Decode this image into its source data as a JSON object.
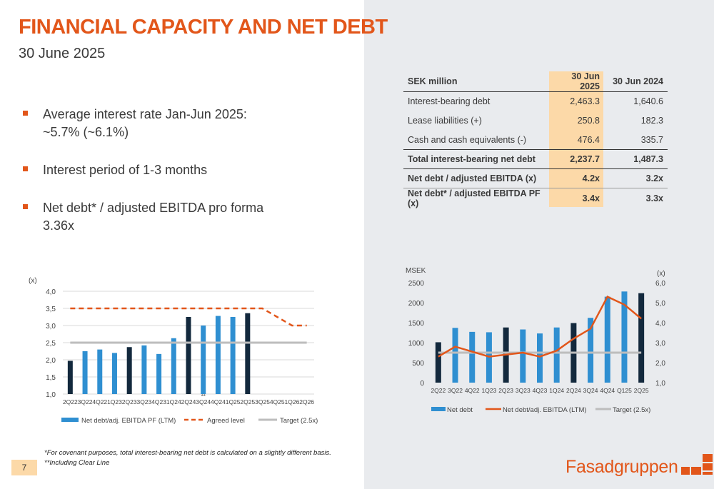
{
  "title": "FINANCIAL CAPACITY AND NET DEBT",
  "subtitle": "30 June 2025",
  "bullets": [
    {
      "line1": "Average interest rate Jan-Jun 2025:",
      "line2": "~5.7% (~6.1%)"
    },
    {
      "line1": "Interest period of 1-3 months",
      "line2": ""
    },
    {
      "line1": "Net debt* / adjusted EBITDA pro forma",
      "line2": "3.36x"
    }
  ],
  "table": {
    "headers": [
      "SEK million",
      "30 Jun 2025",
      "30 Jun 2024"
    ],
    "rows": [
      {
        "label": "Interest-bearing debt",
        "v2025": "2,463.3",
        "v2024": "1,640.6"
      },
      {
        "label": "Lease liabilities (+)",
        "v2025": "250.8",
        "v2024": "182.3"
      },
      {
        "label": "Cash and cash equivalents (-)",
        "v2025": "476.4",
        "v2024": "335.7"
      },
      {
        "label": "Total interest-bearing net debt",
        "v2025": "2,237.7",
        "v2024": "1,487.3"
      },
      {
        "label": "Net debt / adjusted EBITDA (x)",
        "v2025": "4.2x",
        "v2024": "3.2x"
      },
      {
        "label": "Net debt* / adjusted EBITDA PF (x)",
        "v2025": "3.4x",
        "v2024": "3.3x"
      }
    ]
  },
  "colors": {
    "accent": "#e2561a",
    "dark_bar": "#13293d",
    "light_bar": "#2f8fd1",
    "target": "#bdbdbd",
    "highlight": "#fcd9a8"
  },
  "chart_data": [
    {
      "type": "bar",
      "ylabel": "(x)",
      "ylim": [
        1.0,
        4.0
      ],
      "yticks": [
        "1,0",
        "1,5",
        "2,0",
        "2,5",
        "3,0",
        "3,5",
        "4,0"
      ],
      "categories": [
        "2Q22",
        "3Q22",
        "4Q22",
        "1Q23",
        "2Q23",
        "3Q23",
        "4Q23",
        "1Q24",
        "2Q24",
        "3Q24",
        "4Q24",
        "1Q25",
        "2Q25",
        "3Q25",
        "4Q25",
        "1Q26",
        "2Q26"
      ],
      "annotation": {
        "text": "**",
        "category": "3Q24"
      },
      "series": [
        {
          "name": "Net debt/adj. EBITDA PF (LTM)",
          "values": [
            1.97,
            2.25,
            2.3,
            2.2,
            2.37,
            2.42,
            2.17,
            2.63,
            3.25,
            3.0,
            3.28,
            3.25,
            3.36,
            null,
            null,
            null,
            null
          ],
          "dark": [
            true,
            false,
            false,
            false,
            true,
            false,
            false,
            false,
            true,
            false,
            false,
            false,
            true,
            false,
            false,
            false,
            false
          ]
        },
        {
          "name": "Agreed level",
          "values": [
            3.5,
            3.5,
            3.5,
            3.5,
            3.5,
            3.5,
            3.5,
            3.5,
            3.5,
            3.5,
            3.5,
            3.5,
            3.5,
            3.5,
            3.25,
            3.0,
            3.0
          ]
        },
        {
          "name": "Target (2.5x)",
          "values": [
            2.5,
            2.5,
            2.5,
            2.5,
            2.5,
            2.5,
            2.5,
            2.5,
            2.5,
            2.5,
            2.5,
            2.5,
            2.5,
            2.5,
            2.5,
            2.5,
            2.5
          ]
        }
      ],
      "legend": "bottom"
    },
    {
      "type": "bar",
      "ylabel": "MSEK",
      "y2label": "(x)",
      "ylim": [
        0,
        2500
      ],
      "y2lim": [
        1.0,
        6.0
      ],
      "yticks": [
        "0",
        "500",
        "1000",
        "1500",
        "2000",
        "2500"
      ],
      "y2ticks": [
        "1,0",
        "2,0",
        "3,0",
        "4,0",
        "5,0",
        "6,0"
      ],
      "categories": [
        "2Q22",
        "3Q22",
        "4Q22",
        "1Q23",
        "2Q23",
        "3Q23",
        "4Q23",
        "1Q24",
        "2Q24",
        "3Q24",
        "4Q24",
        "Q125",
        "2Q25"
      ],
      "series": [
        {
          "name": "Net debt",
          "values": [
            1010,
            1370,
            1270,
            1260,
            1380,
            1330,
            1230,
            1380,
            1490,
            1620,
            2150,
            2280,
            2238
          ],
          "dark": [
            true,
            false,
            false,
            false,
            true,
            false,
            false,
            false,
            true,
            false,
            false,
            false,
            true
          ]
        },
        {
          "name": "Net debt/adj. EBITDA (LTM)",
          "axis": "right",
          "values": [
            2.3,
            2.8,
            2.55,
            2.3,
            2.4,
            2.5,
            2.3,
            2.6,
            3.2,
            3.7,
            5.3,
            4.9,
            4.2
          ]
        },
        {
          "name": "Target (2.5x)",
          "axis": "right",
          "values": [
            2.5,
            2.5,
            2.5,
            2.5,
            2.5,
            2.5,
            2.5,
            2.5,
            2.5,
            2.5,
            2.5,
            2.5,
            2.5
          ]
        }
      ],
      "legend": "bottom"
    }
  ],
  "footnotes": [
    "*For covenant purposes, total interest-bearing net debt is calculated on a slightly different basis.",
    "**Including Clear Line"
  ],
  "page_number": "7",
  "logo_text": "Fasadgruppen"
}
